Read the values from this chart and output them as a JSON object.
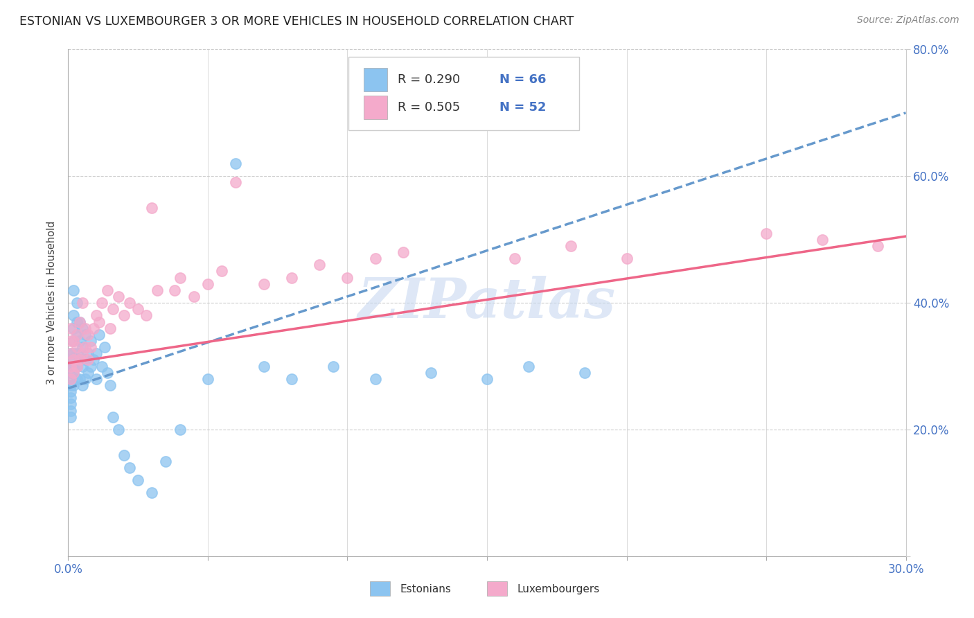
{
  "title": "ESTONIAN VS LUXEMBOURGER 3 OR MORE VEHICLES IN HOUSEHOLD CORRELATION CHART",
  "source": "Source: ZipAtlas.com",
  "ylabel": "3 or more Vehicles in Household",
  "xmin": 0.0,
  "xmax": 0.3,
  "ymin": 0.0,
  "ymax": 0.8,
  "color_estonian": "#8CC4F0",
  "color_luxembourger": "#F4AACB",
  "color_trend_estonian": "#6699CC",
  "color_trend_luxembourger": "#EE6688",
  "color_axis_text": "#4472C4",
  "watermark_text": "ZIPatlas",
  "watermark_color": "#C8D8F0",
  "background_color": "#FFFFFF",
  "gridline_color": "#CCCCCC",
  "legend_R1": "R = 0.290",
  "legend_N1": "N = 66",
  "legend_R2": "R = 0.505",
  "legend_N2": "N = 52",
  "estonian_x": [
    0.001,
    0.001,
    0.001,
    0.001,
    0.001,
    0.001,
    0.001,
    0.001,
    0.001,
    0.001,
    0.001,
    0.002,
    0.002,
    0.002,
    0.002,
    0.002,
    0.002,
    0.002,
    0.002,
    0.003,
    0.003,
    0.003,
    0.003,
    0.003,
    0.003,
    0.004,
    0.004,
    0.004,
    0.004,
    0.005,
    0.005,
    0.005,
    0.005,
    0.006,
    0.006,
    0.006,
    0.007,
    0.007,
    0.008,
    0.008,
    0.009,
    0.01,
    0.01,
    0.011,
    0.012,
    0.013,
    0.014,
    0.015,
    0.016,
    0.018,
    0.02,
    0.022,
    0.025,
    0.03,
    0.035,
    0.04,
    0.05,
    0.06,
    0.07,
    0.08,
    0.095,
    0.11,
    0.13,
    0.15,
    0.165,
    0.185
  ],
  "estonian_y": [
    0.26,
    0.27,
    0.28,
    0.29,
    0.3,
    0.31,
    0.32,
    0.23,
    0.24,
    0.25,
    0.22,
    0.27,
    0.29,
    0.3,
    0.32,
    0.34,
    0.36,
    0.38,
    0.42,
    0.28,
    0.3,
    0.32,
    0.35,
    0.37,
    0.4,
    0.28,
    0.31,
    0.34,
    0.37,
    0.27,
    0.3,
    0.33,
    0.36,
    0.28,
    0.31,
    0.35,
    0.29,
    0.32,
    0.3,
    0.34,
    0.31,
    0.28,
    0.32,
    0.35,
    0.3,
    0.33,
    0.29,
    0.27,
    0.22,
    0.2,
    0.16,
    0.14,
    0.12,
    0.1,
    0.15,
    0.2,
    0.28,
    0.62,
    0.3,
    0.28,
    0.3,
    0.28,
    0.29,
    0.28,
    0.3,
    0.29
  ],
  "luxembourger_x": [
    0.001,
    0.001,
    0.001,
    0.001,
    0.001,
    0.002,
    0.002,
    0.002,
    0.003,
    0.003,
    0.003,
    0.004,
    0.004,
    0.005,
    0.005,
    0.006,
    0.006,
    0.007,
    0.007,
    0.008,
    0.009,
    0.01,
    0.011,
    0.012,
    0.014,
    0.015,
    0.016,
    0.018,
    0.02,
    0.022,
    0.025,
    0.028,
    0.03,
    0.032,
    0.038,
    0.04,
    0.045,
    0.05,
    0.055,
    0.06,
    0.07,
    0.08,
    0.09,
    0.1,
    0.11,
    0.12,
    0.16,
    0.18,
    0.2,
    0.25,
    0.27,
    0.29
  ],
  "luxembourger_y": [
    0.28,
    0.3,
    0.32,
    0.34,
    0.36,
    0.29,
    0.31,
    0.34,
    0.3,
    0.33,
    0.35,
    0.31,
    0.37,
    0.32,
    0.4,
    0.33,
    0.36,
    0.31,
    0.35,
    0.33,
    0.36,
    0.38,
    0.37,
    0.4,
    0.42,
    0.36,
    0.39,
    0.41,
    0.38,
    0.4,
    0.39,
    0.38,
    0.55,
    0.42,
    0.42,
    0.44,
    0.41,
    0.43,
    0.45,
    0.59,
    0.43,
    0.44,
    0.46,
    0.44,
    0.47,
    0.48,
    0.47,
    0.49,
    0.47,
    0.51,
    0.5,
    0.49
  ],
  "trend_e_x0": 0.0,
  "trend_e_y0": 0.265,
  "trend_e_x1": 0.3,
  "trend_e_y1": 0.7,
  "trend_l_x0": 0.0,
  "trend_l_y0": 0.305,
  "trend_l_x1": 0.3,
  "trend_l_y1": 0.505
}
